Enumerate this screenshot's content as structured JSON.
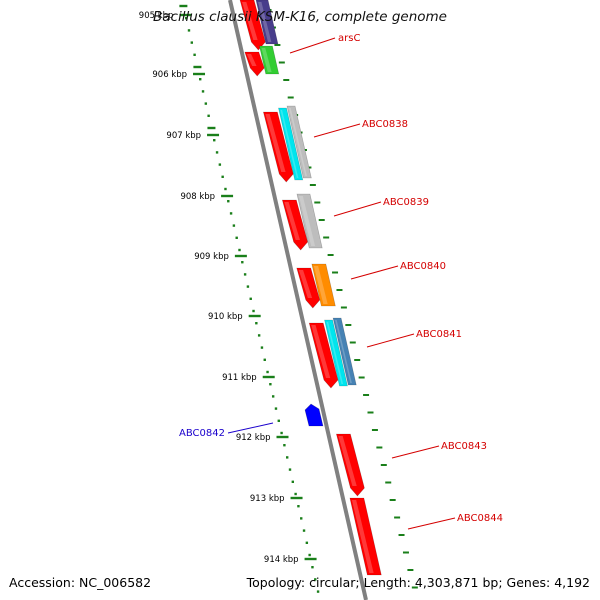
{
  "title": "Bacillus clausii KSM-K16, complete genome",
  "footer": {
    "accession": "Accession: NC_006582",
    "summary": "Topology: circular; Length: 4,303,871 bp; Genes: 4,192"
  },
  "ruler": {
    "labels": [
      "905 kbp",
      "906 kbp",
      "907 kbp",
      "908 kbp",
      "909 kbp",
      "910 kbp",
      "911 kbp",
      "912 kbp",
      "913 kbp",
      "914 kbp"
    ],
    "tick_color": "#1a7f1a"
  },
  "genes": [
    {
      "label": "arsC",
      "color": "#d40000"
    },
    {
      "label": "ABC0838",
      "color": "#d40000"
    },
    {
      "label": "ABC0839",
      "color": "#d40000"
    },
    {
      "label": "ABC0840",
      "color": "#d40000"
    },
    {
      "label": "ABC0841",
      "color": "#d40000"
    },
    {
      "label": "ABC0842",
      "color": "#1a00cc"
    },
    {
      "label": "ABC0843",
      "color": "#d40000"
    },
    {
      "label": "ABC0844",
      "color": "#d40000"
    }
  ],
  "colors": {
    "forward_gene": "#ff0000",
    "reverse_gene": "#0000ff",
    "backbone": "#808080",
    "cog_purple": "#483d8b",
    "cog_green": "#32cd32",
    "cog_cyan": "#00e5ee",
    "cog_gray": "#bdbdbd",
    "cog_orange": "#ff8c00",
    "cog_steel": "#4682b4"
  }
}
